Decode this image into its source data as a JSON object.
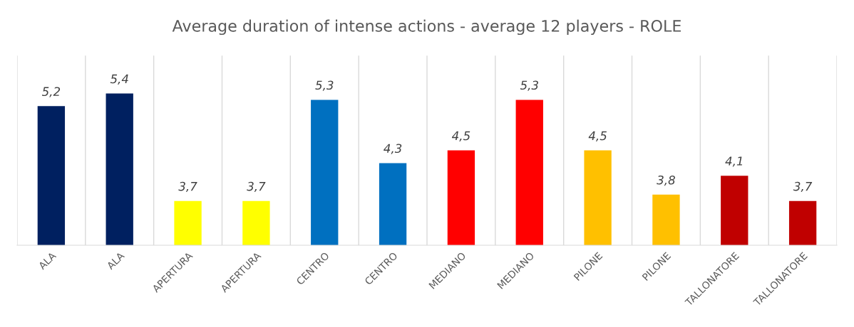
{
  "chart_data": {
    "type": "bar",
    "title": "Average duration of intense actions - average 12 players - ROLE",
    "categories": [
      "ALA",
      "ALA",
      "APERTURA",
      "APERTURA",
      "CENTRO",
      "CENTRO",
      "MEDIANO",
      "MEDIANO",
      "PILONE",
      "PILONE",
      "TALLONATORE",
      "TALLONATORE"
    ],
    "values": [
      5.2,
      5.4,
      3.7,
      3.7,
      5.3,
      4.3,
      4.5,
      5.3,
      4.5,
      3.8,
      4.1,
      3.7
    ],
    "value_labels": [
      "5,2",
      "5,4",
      "3,7",
      "3,7",
      "5,3",
      "4,3",
      "4,5",
      "5,3",
      "4,5",
      "3,8",
      "4,1",
      "3,7"
    ],
    "colors": [
      "#002060",
      "#002060",
      "#ffff00",
      "#ffff00",
      "#0070c0",
      "#0070c0",
      "#ff0000",
      "#ff0000",
      "#ffc000",
      "#ffc000",
      "#c00000",
      "#c00000"
    ],
    "ylim": [
      3,
      6
    ],
    "tick_labels": "x",
    "grid": "x",
    "legend": false
  }
}
